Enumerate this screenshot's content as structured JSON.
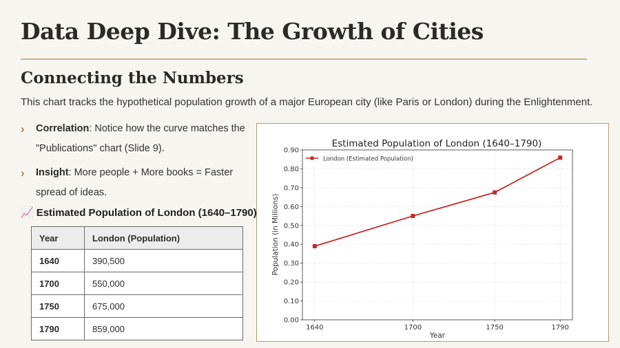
{
  "header": {
    "title": "Data Deep Dive: The Growth of Cities",
    "subtitle": "Connecting the Numbers",
    "intro": "This chart tracks the hypothetical population growth of a major European city (like Paris or London) during the Enlightenment."
  },
  "bullets": [
    {
      "term": "Correlation",
      "text": ": Notice how the curve matches the \"Publications\" chart (Slide 9)."
    },
    {
      "term": "Insight",
      "text": ": More people + More books = Faster spread of ideas."
    }
  ],
  "table": {
    "emoji": "📈",
    "caption": "Estimated Population of London (1640–1790)",
    "headers": [
      "Year",
      "London (Population)"
    ],
    "rows": [
      [
        "1640",
        "390,500"
      ],
      [
        "1700",
        "550,000"
      ],
      [
        "1750",
        "675,000"
      ],
      [
        "1790",
        "859,000"
      ]
    ]
  },
  "colors": {
    "series": "#c62828",
    "accent": "#b59c6a"
  },
  "chart_data": {
    "type": "line",
    "title": "Estimated Population of London (1640–1790)",
    "xlabel": "Year",
    "ylabel": "Population (in Millions)",
    "x": [
      1640,
      1700,
      1750,
      1790
    ],
    "xticks": [
      "1640",
      "1700",
      "1750",
      "1790"
    ],
    "yticks": [
      "0.00",
      "0.10",
      "0.20",
      "0.30",
      "0.40",
      "0.50",
      "0.60",
      "0.70",
      "0.80",
      "0.90"
    ],
    "ylim": [
      0,
      0.9
    ],
    "grid": true,
    "legend_position": "top-left",
    "series": [
      {
        "name": "London (Estimated Population)",
        "values": [
          0.39,
          0.55,
          0.675,
          0.859
        ]
      }
    ]
  }
}
